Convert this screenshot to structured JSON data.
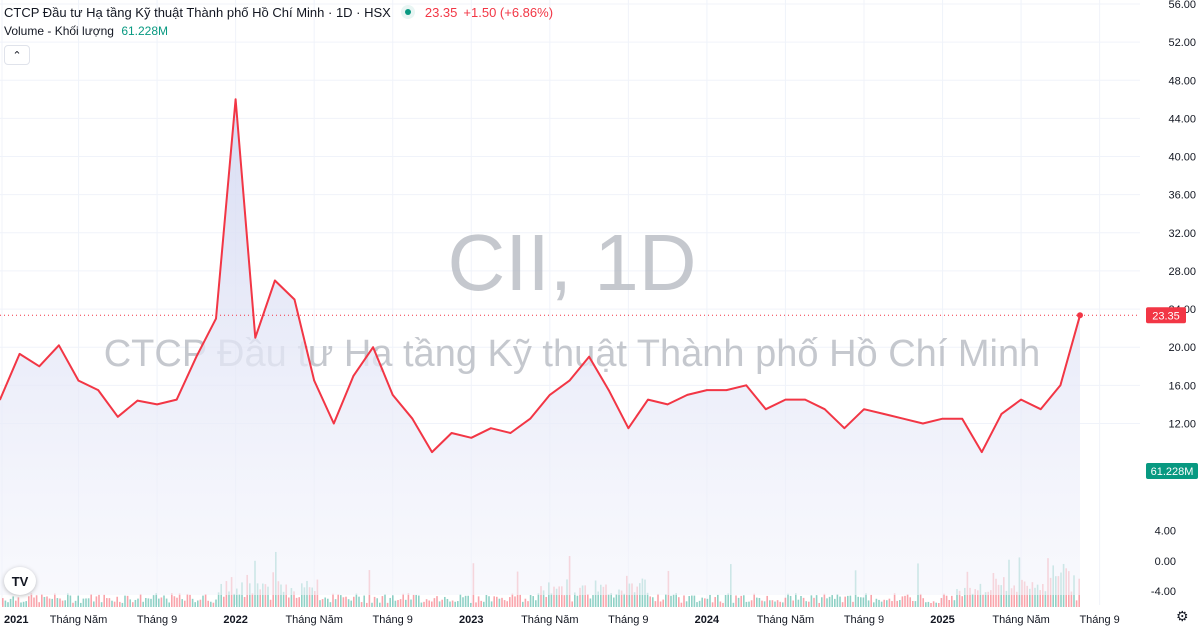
{
  "header": {
    "title": "CTCP Đầu tư Hạ tầng Kỹ thuật Thành phố Hồ Chí Minh · 1D · HSX",
    "price": "23.35",
    "change": "+1.50 (+6.86%)"
  },
  "volume": {
    "label": "Volume - Khối lượng",
    "value": "61.228M"
  },
  "watermark": {
    "ticker": "CII, 1D",
    "name": "CTCP Đầu tư Hạ tầng Kỹ thuật Thành phố Hồ Chí Minh"
  },
  "colors": {
    "line": "#f23645",
    "area_top": "#d4d9f2",
    "area_bottom": "#f4f5fc",
    "vol_up": "#089981",
    "vol_down": "#f23645",
    "grid": "#f0f3fa",
    "text": "#131722"
  },
  "chart_data": {
    "type": "area",
    "price_axis": {
      "ticks": [
        "56.00",
        "52.00",
        "48.00",
        "44.00",
        "40.00",
        "36.00",
        "32.00",
        "28.00",
        "24.00",
        "20.00",
        "16.00",
        "12.00"
      ],
      "ylim": [
        11,
        56
      ]
    },
    "volume_axis": {
      "ticks": [
        "4.00",
        "0.00",
        "-4.00"
      ],
      "ylim": [
        -4.5,
        12
      ]
    },
    "x_labels": [
      "2021",
      "Tháng Năm",
      "Tháng 9",
      "2022",
      "Tháng Năm",
      "Tháng 9",
      "2023",
      "Tháng Năm",
      "Tháng 9",
      "2024",
      "Tháng Năm",
      "Tháng 9",
      "2025",
      "Tháng Năm",
      "Tháng 9"
    ],
    "last_price_label": "23.35",
    "last_volume_label": "61.228M",
    "series": [
      {
        "name": "CII",
        "x": [
          "2021-01",
          "2021-02",
          "2021-03",
          "2021-04",
          "2021-05",
          "2021-06",
          "2021-07",
          "2021-08",
          "2021-09",
          "2021-10",
          "2021-11",
          "2021-12",
          "2022-01",
          "2022-02",
          "2022-03",
          "2022-04",
          "2022-05",
          "2022-06",
          "2022-07",
          "2022-08",
          "2022-09",
          "2022-10",
          "2022-11",
          "2022-12",
          "2023-01",
          "2023-02",
          "2023-03",
          "2023-04",
          "2023-05",
          "2023-06",
          "2023-07",
          "2023-08",
          "2023-09",
          "2023-10",
          "2023-11",
          "2023-12",
          "2024-01",
          "2024-02",
          "2024-03",
          "2024-04",
          "2024-05",
          "2024-06",
          "2024-07",
          "2024-08",
          "2024-09",
          "2024-10",
          "2024-11",
          "2024-12",
          "2025-01",
          "2025-02",
          "2025-03",
          "2025-04",
          "2025-05",
          "2025-06",
          "2025-07",
          "2025-08"
        ],
        "values": [
          14.5,
          19.3,
          18.0,
          20.2,
          16.5,
          15.5,
          12.7,
          14.4,
          14.0,
          14.5,
          19.0,
          23.0,
          46.0,
          21.0,
          27.0,
          25.0,
          16.5,
          12.0,
          17.0,
          20.0,
          15.0,
          12.5,
          9.0,
          11.0,
          10.5,
          11.5,
          11.0,
          12.5,
          15.0,
          16.5,
          19.0,
          15.5,
          11.5,
          14.5,
          14.0,
          15.0,
          15.5,
          15.5,
          16.0,
          13.5,
          14.5,
          14.5,
          13.5,
          11.5,
          13.5,
          13.0,
          12.5,
          12.0,
          12.5,
          12.5,
          9.0,
          13.0,
          14.5,
          13.5,
          16.0,
          23.35
        ]
      }
    ]
  }
}
